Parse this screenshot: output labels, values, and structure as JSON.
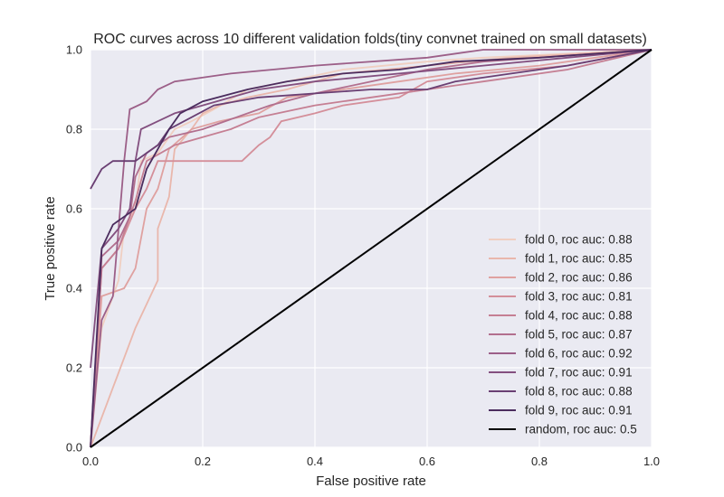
{
  "chart_data": {
    "type": "line",
    "title": "ROC curves across 10 different validation folds(tiny convnet trained on small datasets)",
    "xlabel": "False positive rate",
    "ylabel": "True positive rate",
    "xlim": [
      0.0,
      1.0
    ],
    "ylim": [
      0.0,
      1.0
    ],
    "xticks": [
      "0.0",
      "0.2",
      "0.4",
      "0.6",
      "0.8",
      "1.0"
    ],
    "yticks": [
      "0.0",
      "0.2",
      "0.4",
      "0.6",
      "0.8",
      "1.0"
    ],
    "grid": true,
    "background": "#eaeaf2",
    "legend_position": "lower-right",
    "series": [
      {
        "name": "fold 0, roc auc: 0.88",
        "color": "#f0cfc1",
        "points": [
          [
            0,
            0
          ],
          [
            0.02,
            0.3
          ],
          [
            0.05,
            0.42
          ],
          [
            0.06,
            0.55
          ],
          [
            0.08,
            0.6
          ],
          [
            0.09,
            0.72
          ],
          [
            0.12,
            0.74
          ],
          [
            0.15,
            0.8
          ],
          [
            0.18,
            0.82
          ],
          [
            0.22,
            0.85
          ],
          [
            0.28,
            0.9
          ],
          [
            0.35,
            0.92
          ],
          [
            0.45,
            0.95
          ],
          [
            0.6,
            0.97
          ],
          [
            0.7,
            0.98
          ],
          [
            1,
            1
          ]
        ]
      },
      {
        "name": "fold 1, roc auc: 0.85",
        "color": "#e9b7ac",
        "points": [
          [
            0,
            0
          ],
          [
            0.08,
            0.3
          ],
          [
            0.1,
            0.36
          ],
          [
            0.12,
            0.42
          ],
          [
            0.12,
            0.55
          ],
          [
            0.14,
            0.63
          ],
          [
            0.15,
            0.75
          ],
          [
            0.18,
            0.8
          ],
          [
            0.2,
            0.84
          ],
          [
            0.23,
            0.86
          ],
          [
            0.28,
            0.88
          ],
          [
            0.35,
            0.9
          ],
          [
            0.45,
            0.94
          ],
          [
            0.6,
            0.96
          ],
          [
            0.75,
            0.98
          ],
          [
            1,
            1
          ]
        ]
      },
      {
        "name": "fold 2, roc auc: 0.86",
        "color": "#dfa1a0",
        "points": [
          [
            0,
            0
          ],
          [
            0.02,
            0.38
          ],
          [
            0.06,
            0.4
          ],
          [
            0.08,
            0.45
          ],
          [
            0.1,
            0.6
          ],
          [
            0.12,
            0.65
          ],
          [
            0.14,
            0.75
          ],
          [
            0.18,
            0.8
          ],
          [
            0.23,
            0.82
          ],
          [
            0.3,
            0.84
          ],
          [
            0.35,
            0.88
          ],
          [
            0.45,
            0.9
          ],
          [
            0.55,
            0.92
          ],
          [
            0.65,
            0.94
          ],
          [
            0.8,
            0.96
          ],
          [
            1,
            1
          ]
        ]
      },
      {
        "name": "fold 3, roc auc: 0.81",
        "color": "#d48f9a",
        "points": [
          [
            0,
            0
          ],
          [
            0.02,
            0.45
          ],
          [
            0.05,
            0.5
          ],
          [
            0.08,
            0.6
          ],
          [
            0.1,
            0.65
          ],
          [
            0.12,
            0.72
          ],
          [
            0.22,
            0.72
          ],
          [
            0.27,
            0.72
          ],
          [
            0.3,
            0.76
          ],
          [
            0.32,
            0.78
          ],
          [
            0.34,
            0.82
          ],
          [
            0.4,
            0.84
          ],
          [
            0.45,
            0.86
          ],
          [
            0.55,
            0.88
          ],
          [
            0.6,
            0.92
          ],
          [
            0.7,
            0.94
          ],
          [
            0.85,
            0.96
          ],
          [
            1,
            1
          ]
        ]
      },
      {
        "name": "fold 4, roc auc: 0.88",
        "color": "#c57f93",
        "points": [
          [
            0,
            0
          ],
          [
            0.02,
            0.45
          ],
          [
            0.05,
            0.5
          ],
          [
            0.08,
            0.62
          ],
          [
            0.1,
            0.72
          ],
          [
            0.15,
            0.76
          ],
          [
            0.2,
            0.78
          ],
          [
            0.25,
            0.8
          ],
          [
            0.3,
            0.83
          ],
          [
            0.4,
            0.86
          ],
          [
            0.5,
            0.88
          ],
          [
            0.6,
            0.9
          ],
          [
            0.7,
            0.92
          ],
          [
            0.85,
            0.95
          ],
          [
            1,
            1
          ]
        ]
      },
      {
        "name": "fold 5, roc auc: 0.87",
        "color": "#b26f8e",
        "points": [
          [
            0,
            0
          ],
          [
            0.02,
            0.48
          ],
          [
            0.05,
            0.52
          ],
          [
            0.07,
            0.58
          ],
          [
            0.08,
            0.68
          ],
          [
            0.1,
            0.74
          ],
          [
            0.14,
            0.78
          ],
          [
            0.2,
            0.8
          ],
          [
            0.26,
            0.83
          ],
          [
            0.32,
            0.86
          ],
          [
            0.4,
            0.89
          ],
          [
            0.5,
            0.92
          ],
          [
            0.6,
            0.95
          ],
          [
            0.7,
            0.97
          ],
          [
            1,
            1
          ]
        ]
      },
      {
        "name": "fold 6, roc auc: 0.92",
        "color": "#9c5f88",
        "points": [
          [
            0,
            0
          ],
          [
            0.02,
            0.32
          ],
          [
            0.04,
            0.38
          ],
          [
            0.05,
            0.55
          ],
          [
            0.06,
            0.72
          ],
          [
            0.07,
            0.85
          ],
          [
            0.1,
            0.87
          ],
          [
            0.12,
            0.9
          ],
          [
            0.15,
            0.92
          ],
          [
            0.25,
            0.94
          ],
          [
            0.4,
            0.96
          ],
          [
            0.6,
            0.98
          ],
          [
            0.7,
            1
          ],
          [
            1,
            1
          ]
        ]
      },
      {
        "name": "fold 7, roc auc: 0.91",
        "color": "#834f7f",
        "points": [
          [
            0,
            0.2
          ],
          [
            0.02,
            0.5
          ],
          [
            0.05,
            0.55
          ],
          [
            0.07,
            0.6
          ],
          [
            0.08,
            0.72
          ],
          [
            0.09,
            0.8
          ],
          [
            0.12,
            0.82
          ],
          [
            0.15,
            0.84
          ],
          [
            0.2,
            0.86
          ],
          [
            0.25,
            0.88
          ],
          [
            0.3,
            0.9
          ],
          [
            0.4,
            0.92
          ],
          [
            0.55,
            0.94
          ],
          [
            0.7,
            0.96
          ],
          [
            0.85,
            0.98
          ],
          [
            1,
            1
          ]
        ]
      },
      {
        "name": "fold 8, roc auc: 0.88",
        "color": "#6a3f73",
        "points": [
          [
            0,
            0.65
          ],
          [
            0.02,
            0.7
          ],
          [
            0.04,
            0.72
          ],
          [
            0.08,
            0.72
          ],
          [
            0.1,
            0.74
          ],
          [
            0.12,
            0.76
          ],
          [
            0.14,
            0.8
          ],
          [
            0.18,
            0.83
          ],
          [
            0.22,
            0.86
          ],
          [
            0.3,
            0.88
          ],
          [
            0.4,
            0.89
          ],
          [
            0.5,
            0.9
          ],
          [
            0.6,
            0.9
          ],
          [
            0.65,
            0.92
          ],
          [
            0.75,
            0.94
          ],
          [
            0.85,
            0.96
          ],
          [
            1,
            1
          ]
        ]
      },
      {
        "name": "fold 9, roc auc: 0.91",
        "color": "#4b2c5e",
        "points": [
          [
            0,
            0
          ],
          [
            0.02,
            0.5
          ],
          [
            0.04,
            0.56
          ],
          [
            0.06,
            0.58
          ],
          [
            0.08,
            0.6
          ],
          [
            0.1,
            0.7
          ],
          [
            0.12,
            0.75
          ],
          [
            0.14,
            0.8
          ],
          [
            0.16,
            0.84
          ],
          [
            0.2,
            0.87
          ],
          [
            0.28,
            0.9
          ],
          [
            0.35,
            0.92
          ],
          [
            0.45,
            0.94
          ],
          [
            0.55,
            0.95
          ],
          [
            0.65,
            0.97
          ],
          [
            0.8,
            0.98
          ],
          [
            1,
            1
          ]
        ]
      },
      {
        "name": "random, roc auc: 0.5",
        "color": "#000000",
        "points": [
          [
            0,
            0
          ],
          [
            1,
            1
          ]
        ]
      }
    ]
  }
}
